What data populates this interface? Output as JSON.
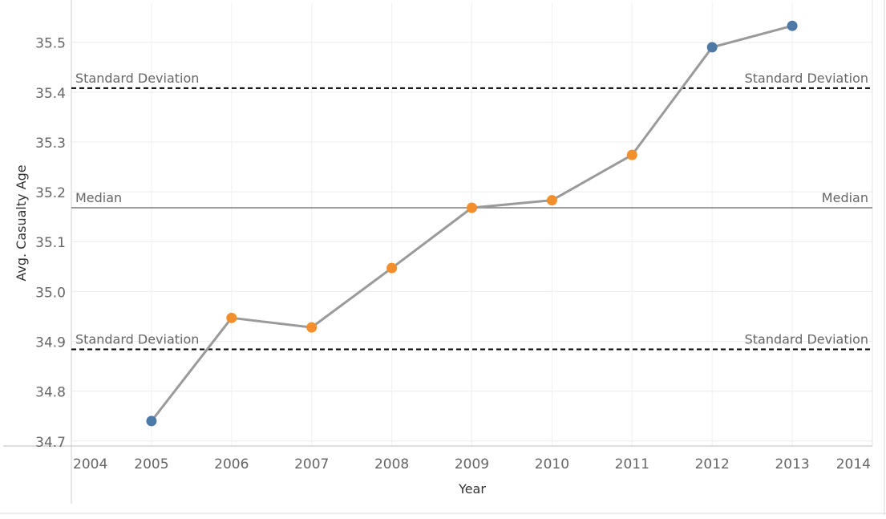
{
  "chart_data": {
    "type": "line",
    "xlabel": "Year",
    "ylabel": "Avg. Casualty Age",
    "x_ticks": [
      "2004",
      "2005",
      "2006",
      "2007",
      "2008",
      "2009",
      "2010",
      "2011",
      "2012",
      "2013",
      "2014"
    ],
    "y_ticks": [
      "34.7",
      "34.8",
      "34.9",
      "35.0",
      "35.1",
      "35.2",
      "35.3",
      "35.4",
      "35.5"
    ],
    "xlim": [
      2004,
      2014
    ],
    "ylim": [
      34.69,
      35.58
    ],
    "grid": true,
    "series": [
      {
        "x": [
          2005,
          2006,
          2007,
          2008,
          2009,
          2010,
          2011,
          2012,
          2013
        ],
        "values": [
          34.74,
          34.947,
          34.928,
          35.047,
          35.168,
          35.183,
          35.274,
          35.49,
          35.533
        ],
        "point_colors": [
          "#4e79a7",
          "#f28e2b",
          "#f28e2b",
          "#f28e2b",
          "#f28e2b",
          "#f28e2b",
          "#f28e2b",
          "#4e79a7",
          "#4e79a7"
        ]
      }
    ],
    "reference_lines": [
      {
        "label": "Standard Deviation",
        "value": 35.408,
        "style": "dashed"
      },
      {
        "label": "Median",
        "value": 35.168,
        "style": "solid"
      },
      {
        "label": "Standard Deviation",
        "value": 34.884,
        "style": "dashed"
      }
    ],
    "colors": {
      "line": "#9a9a9a",
      "in_band": "#f28e2b",
      "out_of_band": "#4e79a7",
      "reference": "#000000",
      "median": "#7f7f7f"
    }
  }
}
